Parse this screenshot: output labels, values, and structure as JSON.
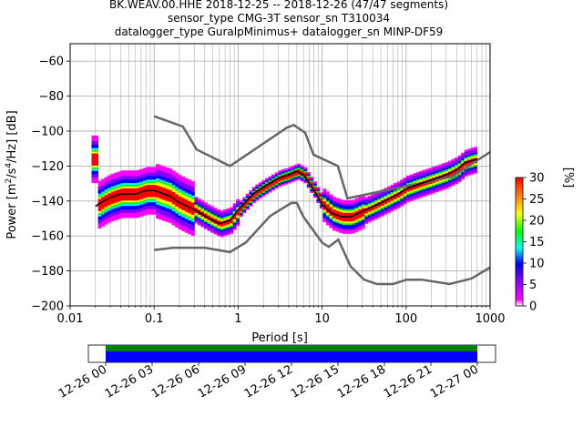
{
  "title_lines": [
    "BK.WEAV.00.HHE   2018-12-25 -- 2018-12-26  (47/47 segments)",
    "sensor_type CMG-3T sensor_sn T310034",
    "datalogger_type GuralpMinimus+ datalogger_sn MINP-DF59"
  ],
  "chart_data": {
    "type": "heatmap",
    "xlabel": "Period [s]",
    "ylabel": "Power [m²/s⁴/Hz] [dB]",
    "x_scale": "log",
    "xlim": [
      0.01,
      1000
    ],
    "ylim": [
      -200,
      -50
    ],
    "xticks": [
      0.01,
      0.1,
      1,
      10,
      100,
      1000
    ],
    "xtick_labels": [
      "0.01",
      "0.1",
      "1",
      "10",
      "100",
      "1000"
    ],
    "yticks": [
      -200,
      -180,
      -160,
      -140,
      -120,
      -100,
      -80,
      -60
    ],
    "ytick_labels": [
      "−200",
      "−180",
      "−160",
      "−140",
      "−120",
      "−100",
      "−80",
      "−60"
    ],
    "grid": true,
    "nhnm": {
      "period": [
        0.1,
        0.17,
        0.4,
        0.8,
        1.24,
        2.4,
        4.3,
        5,
        6,
        10,
        12,
        15.6,
        21.9,
        31.6,
        45,
        70,
        101,
        154,
        328,
        600,
        1000
      ],
      "power": [
        -168,
        -166.7,
        -166.7,
        -169.2,
        -163.7,
        -148.6,
        -141.1,
        -141.1,
        -149,
        -163.8,
        -166.2,
        -162.1,
        -177.5,
        -185,
        -187.5,
        -187.5,
        -185,
        -185,
        -187.5,
        -184.4,
        -178
      ]
    },
    "nlnm": {
      "period": [
        0.1,
        0.22,
        0.32,
        0.8,
        3.8,
        4.6,
        6.3,
        7.9,
        15.4,
        20,
        354.8,
        1000
      ],
      "power": [
        -91.5,
        -97.4,
        -110.5,
        -120,
        -98,
        -96.5,
        -101,
        -113.5,
        -120,
        -138.5,
        -126,
        -112
      ]
    },
    "mode_curve": {
      "period": [
        0.02,
        0.025,
        0.03,
        0.04,
        0.06,
        0.08,
        0.1,
        0.15,
        0.2,
        0.3,
        0.45,
        0.6,
        0.8,
        1,
        1.5,
        2,
        3,
        4,
        5,
        6,
        8,
        10,
        13,
        17,
        22,
        30,
        45,
        60,
        80,
        100,
        150,
        200,
        300,
        400,
        500,
        700
      ],
      "power": [
        -143,
        -140,
        -138,
        -136,
        -136,
        -134,
        -134,
        -137,
        -141,
        -145,
        -150,
        -153,
        -151,
        -145,
        -136,
        -132,
        -127,
        -125,
        -123,
        -125,
        -134,
        -142,
        -147,
        -149,
        -149,
        -146,
        -142,
        -139,
        -136,
        -133,
        -130,
        -128,
        -125,
        -122,
        -118,
        -116
      ]
    },
    "colorbar": {
      "label": "[%]",
      "range": [
        0,
        30
      ],
      "ticks": [
        0,
        5,
        10,
        15,
        20,
        25,
        30
      ],
      "colormap": [
        "#ffffff",
        "#ff00ff",
        "#0000ff",
        "#00ffff",
        "#00ff00",
        "#ffff00",
        "#ff8000",
        "#ff0000"
      ]
    },
    "time_axis": {
      "tick_labels": [
        "12-26 00",
        "12-26 03",
        "12-26 06",
        "12-26 09",
        "12-26 12",
        "12-26 15",
        "12-26 18",
        "12-26 21",
        "12-27 00"
      ],
      "coverage_colors": [
        "#008000",
        "#0000ff"
      ]
    }
  }
}
